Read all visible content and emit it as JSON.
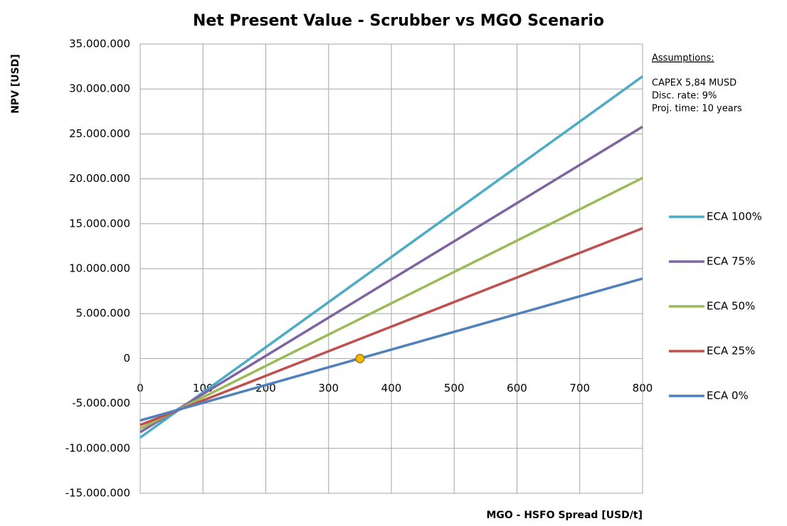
{
  "chart_data": {
    "type": "line",
    "title": "Net Present Value - Scrubber vs MGO Scenario",
    "y_label": "NPV [USD]",
    "x_label": "MGO - HSFO Spread [USD/t]",
    "annotations": [
      "Assumptions:",
      "CAPEX 5,84 MUSD",
      "Disc. rate: 9%",
      "Proj. time: 10 years"
    ],
    "x": [
      0,
      100,
      200,
      300,
      400,
      500,
      600,
      700,
      800
    ],
    "series": [
      {
        "name": "ECA 100%",
        "color": "#4bacc6",
        "values": [
          -8800000,
          -3775000,
          1250000,
          6275000,
          11300000,
          16325000,
          21350000,
          26375000,
          31400000
        ]
      },
      {
        "name": "ECA 75%",
        "color": "#8064a2",
        "values": [
          -8200000,
          -3950000,
          300000,
          4550000,
          8800000,
          13050000,
          17300000,
          21550000,
          25800000
        ]
      },
      {
        "name": "ECA 50%",
        "color": "#9bbb59",
        "values": [
          -7800000,
          -4312500,
          -825000,
          2662500,
          6150000,
          9637500,
          13125000,
          16612500,
          20100000
        ]
      },
      {
        "name": "ECA 25%",
        "color": "#c0504d",
        "values": [
          -7400000,
          -4662500,
          -1925000,
          812500,
          3550000,
          6287500,
          9025000,
          11762500,
          14500000
        ]
      },
      {
        "name": "ECA 0%",
        "color": "#4f81bd",
        "values": [
          -6900000,
          -4925000,
          -2950000,
          -975000,
          1000000,
          2975000,
          4950000,
          6925000,
          8900000
        ]
      }
    ],
    "marker": {
      "x": 350,
      "y": 0,
      "color": "#f5b800"
    },
    "xlim": [
      0,
      800
    ],
    "xticks": [
      0,
      100,
      200,
      300,
      400,
      500,
      600,
      700,
      800
    ],
    "ylim": [
      -15000000,
      35000000
    ],
    "yticks": [
      {
        "value": -15000000,
        "label": "-15.000.000"
      },
      {
        "value": -10000000,
        "label": "-10.000.000"
      },
      {
        "value": -5000000,
        "label": "-5.000.000"
      },
      0,
      {
        "value": 5000000,
        "label": "5.000.000"
      },
      {
        "value": 10000000,
        "label": "10.000.000"
      },
      {
        "value": 15000000,
        "label": "15.000.000"
      },
      {
        "value": 20000000,
        "label": "20.000.000"
      },
      {
        "value": 25000000,
        "label": "25.000.000"
      },
      {
        "value": 30000000,
        "label": "30.000.000"
      },
      {
        "value": 35000000,
        "label": "35.000.000"
      }
    ],
    "grid": true,
    "legend": "right"
  }
}
